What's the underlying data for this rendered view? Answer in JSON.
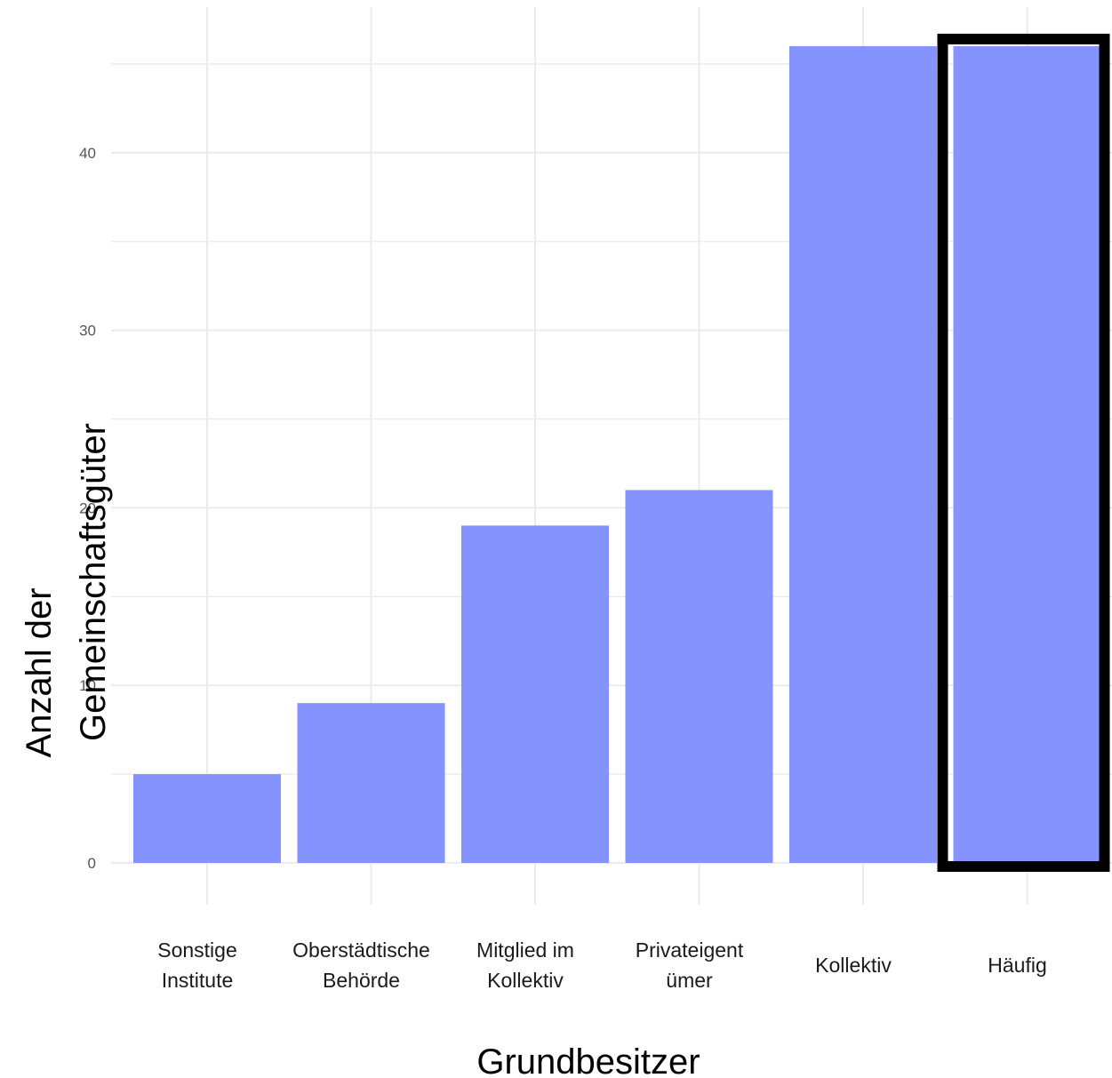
{
  "chart_data": {
    "type": "bar",
    "categories": [
      [
        "Sonstige",
        "Institute"
      ],
      [
        "Oberstädtische",
        "Behörde"
      ],
      [
        "Mitglied im",
        "Kollektiv"
      ],
      [
        "Privateigent",
        "ümer"
      ],
      [
        "Kollektiv"
      ],
      [
        "Häufig"
      ]
    ],
    "values": [
      5,
      9,
      19,
      21,
      46,
      46
    ],
    "highlighted_category_index": 5,
    "xlabel": "Grundbesitzer",
    "ylabel": [
      "Anzahl der",
      "Gemeinschaftsgüter"
    ],
    "ylim": [
      0,
      50
    ],
    "y_ticks": [
      0,
      10,
      20,
      30,
      40
    ],
    "grid": true,
    "bar_color": "#8493fd",
    "highlight_border_color": "#000000",
    "grid_color": "#ebebeb"
  }
}
